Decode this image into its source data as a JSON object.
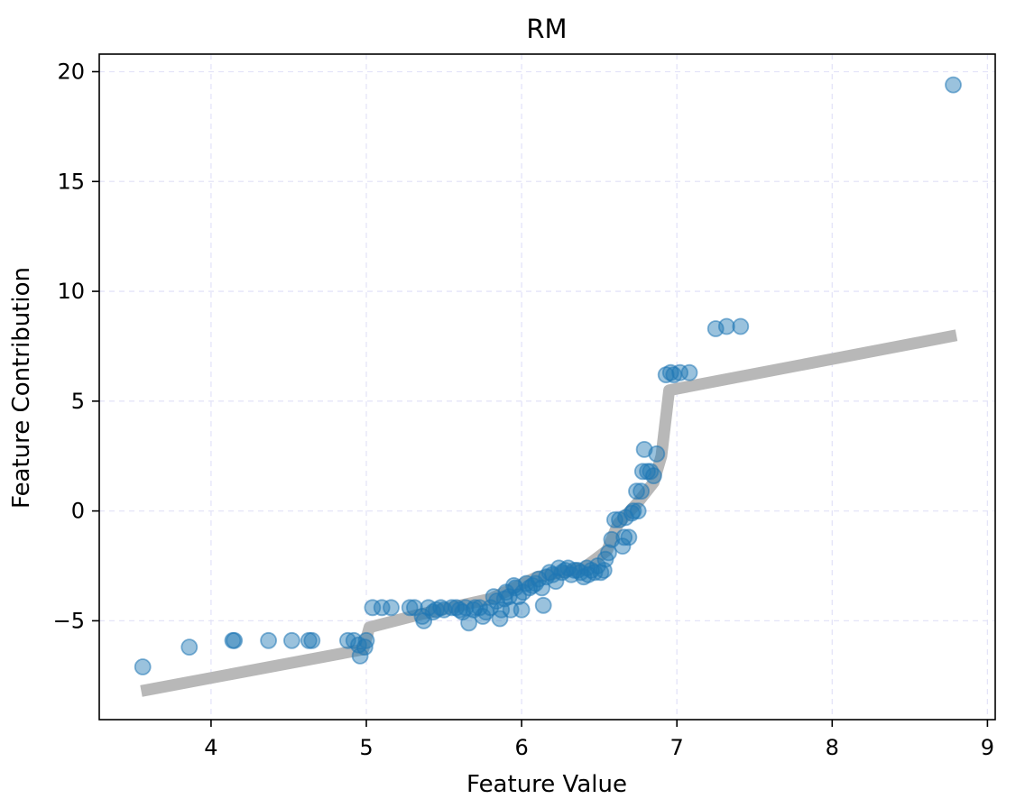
{
  "chart_data": {
    "type": "scatter",
    "title": "RM",
    "xlabel": "Feature Value",
    "ylabel": "Feature Contribution",
    "xlim": [
      3.28,
      9.05
    ],
    "ylim": [
      -9.5,
      20.8
    ],
    "x_ticks": [
      4,
      5,
      6,
      7,
      8,
      9
    ],
    "y_ticks": [
      -5,
      0,
      5,
      10,
      15,
      20
    ],
    "x_tick_labels": [
      "4",
      "5",
      "6",
      "7",
      "8",
      "9"
    ],
    "y_tick_labels": [
      "−5",
      "0",
      "5",
      "10",
      "15",
      "20"
    ],
    "grid": true,
    "series": [
      {
        "kind": "line",
        "color": "#b8b8b8",
        "points": [
          [
            3.55,
            -8.2
          ],
          [
            4.98,
            -6.3
          ],
          [
            5.02,
            -5.3
          ],
          [
            5.35,
            -4.7
          ],
          [
            5.8,
            -4.0
          ],
          [
            6.1,
            -3.0
          ],
          [
            6.4,
            -2.6
          ],
          [
            6.55,
            -1.8
          ],
          [
            6.62,
            -0.6
          ],
          [
            6.75,
            0.4
          ],
          [
            6.85,
            1.3
          ],
          [
            6.9,
            2.5
          ],
          [
            6.95,
            5.5
          ],
          [
            8.8,
            8.0
          ]
        ]
      },
      {
        "kind": "scatter",
        "color": "#1f77b4",
        "alpha": 0.45,
        "points": [
          [
            3.56,
            -7.1
          ],
          [
            3.86,
            -6.2
          ],
          [
            4.14,
            -5.9
          ],
          [
            4.15,
            -5.9
          ],
          [
            4.37,
            -5.9
          ],
          [
            4.52,
            -5.9
          ],
          [
            4.63,
            -5.9
          ],
          [
            4.65,
            -5.9
          ],
          [
            4.88,
            -5.9
          ],
          [
            4.92,
            -5.9
          ],
          [
            4.95,
            -6.1
          ],
          [
            4.96,
            -6.6
          ],
          [
            4.99,
            -6.2
          ],
          [
            5.0,
            -5.9
          ],
          [
            5.04,
            -4.4
          ],
          [
            5.1,
            -4.4
          ],
          [
            5.16,
            -4.4
          ],
          [
            5.28,
            -4.4
          ],
          [
            5.31,
            -4.4
          ],
          [
            5.36,
            -4.8
          ],
          [
            5.37,
            -5.0
          ],
          [
            5.4,
            -4.4
          ],
          [
            5.43,
            -4.6
          ],
          [
            5.45,
            -4.5
          ],
          [
            5.48,
            -4.4
          ],
          [
            5.5,
            -4.5
          ],
          [
            5.55,
            -4.4
          ],
          [
            5.58,
            -4.4
          ],
          [
            5.6,
            -4.5
          ],
          [
            5.62,
            -4.6
          ],
          [
            5.64,
            -4.4
          ],
          [
            5.66,
            -5.1
          ],
          [
            5.69,
            -4.5
          ],
          [
            5.7,
            -4.4
          ],
          [
            5.73,
            -4.4
          ],
          [
            5.75,
            -4.8
          ],
          [
            5.77,
            -4.6
          ],
          [
            5.8,
            -4.4
          ],
          [
            5.82,
            -3.9
          ],
          [
            5.84,
            -4.1
          ],
          [
            5.86,
            -4.9
          ],
          [
            5.87,
            -4.5
          ],
          [
            5.89,
            -4.0
          ],
          [
            5.9,
            -3.7
          ],
          [
            5.92,
            -3.9
          ],
          [
            5.93,
            -4.5
          ],
          [
            5.95,
            -3.4
          ],
          [
            5.96,
            -3.5
          ],
          [
            5.98,
            -3.9
          ],
          [
            6.0,
            -4.5
          ],
          [
            6.01,
            -3.7
          ],
          [
            6.03,
            -3.3
          ],
          [
            6.05,
            -3.5
          ],
          [
            6.07,
            -3.4
          ],
          [
            6.09,
            -3.3
          ],
          [
            6.11,
            -3.1
          ],
          [
            6.13,
            -3.5
          ],
          [
            6.14,
            -4.3
          ],
          [
            6.16,
            -3.0
          ],
          [
            6.18,
            -2.8
          ],
          [
            6.2,
            -2.9
          ],
          [
            6.22,
            -3.2
          ],
          [
            6.24,
            -2.6
          ],
          [
            6.26,
            -2.8
          ],
          [
            6.28,
            -2.7
          ],
          [
            6.3,
            -2.6
          ],
          [
            6.32,
            -2.9
          ],
          [
            6.34,
            -2.7
          ],
          [
            6.36,
            -2.7
          ],
          [
            6.38,
            -2.8
          ],
          [
            6.4,
            -3.0
          ],
          [
            6.42,
            -2.6
          ],
          [
            6.43,
            -2.9
          ],
          [
            6.45,
            -2.7
          ],
          [
            6.47,
            -2.8
          ],
          [
            6.49,
            -2.5
          ],
          [
            6.51,
            -2.8
          ],
          [
            6.53,
            -2.7
          ],
          [
            6.54,
            -2.2
          ],
          [
            6.56,
            -1.9
          ],
          [
            6.58,
            -1.3
          ],
          [
            6.6,
            -0.4
          ],
          [
            6.63,
            -0.4
          ],
          [
            6.65,
            -1.6
          ],
          [
            6.66,
            -1.2
          ],
          [
            6.67,
            -0.3
          ],
          [
            6.69,
            -1.2
          ],
          [
            6.71,
            -0.1
          ],
          [
            6.72,
            0.0
          ],
          [
            6.74,
            0.9
          ],
          [
            6.75,
            0.0
          ],
          [
            6.77,
            0.9
          ],
          [
            6.78,
            1.8
          ],
          [
            6.79,
            2.8
          ],
          [
            6.81,
            1.8
          ],
          [
            6.83,
            1.8
          ],
          [
            6.85,
            1.6
          ],
          [
            6.87,
            2.6
          ],
          [
            6.93,
            6.2
          ],
          [
            6.96,
            6.3
          ],
          [
            6.98,
            6.2
          ],
          [
            7.02,
            6.3
          ],
          [
            7.08,
            6.3
          ],
          [
            7.25,
            8.3
          ],
          [
            7.32,
            8.4
          ],
          [
            7.41,
            8.4
          ],
          [
            8.78,
            19.4
          ]
        ]
      }
    ]
  }
}
